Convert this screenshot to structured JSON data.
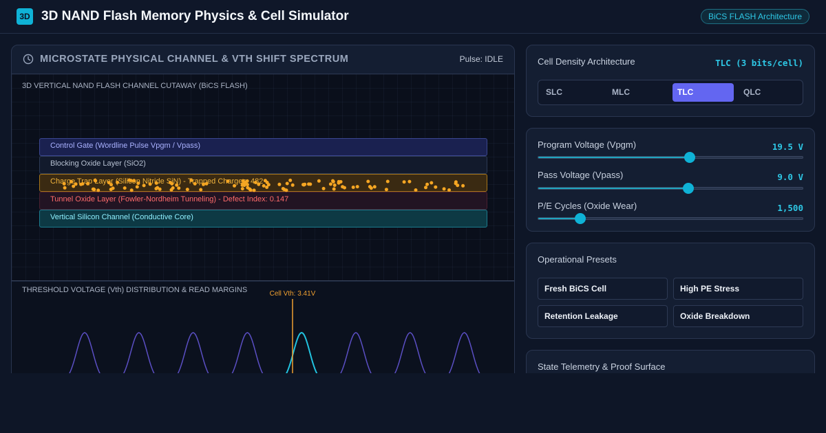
{
  "header": {
    "logo_text": "3D",
    "title": "3D NAND Flash Memory Physics & Cell Simulator",
    "badge": "BiCS FLASH Architecture"
  },
  "main_panel": {
    "title": "MICROSTATE PHYSICAL CHANNEL & VTH SHIFT SPECTRUM",
    "pulse_status": "Pulse: IDLE",
    "cutaway_label": "3D VERTICAL NAND FLASH CHANNEL CUTAWAY (BiCS FLASH)",
    "layers": {
      "control_gate": "Control Gate (Wordline Pulse Vpgm / Vpass)",
      "blocking_oxide": "Blocking Oxide Layer (SiO2)",
      "charge_trap": "Charge Trap Layer (Silicon Nitride SiN) - Trapped Charges: 482",
      "tunnel_oxide": "Tunnel Oxide Layer (Fowler-Nordheim Tunneling) - Defect Index: 0.147",
      "channel": "Vertical Silicon Channel (Conductive Core)"
    },
    "vth_label": "THRESHOLD VOLTAGE (Vth) DISTRIBUTION & READ MARGINS",
    "cell_vth_label": "Cell Vth: 3.41V",
    "vth_states": 8,
    "active_state_index": 4,
    "colors": {
      "state_curve": "#5b4fc4",
      "active_curve": "#22c3e0",
      "cell_marker": "#f0a030",
      "charge_dot": "#f5a623"
    }
  },
  "density": {
    "title": "Cell Density Architecture",
    "value": "TLC (3 bits/cell)",
    "options": [
      "SLC",
      "MLC",
      "TLC",
      "QLC"
    ],
    "selected": "TLC"
  },
  "sliders": [
    {
      "label": "Program Voltage (Vpgm)",
      "value": "19.5 V",
      "fraction": 0.573
    },
    {
      "label": "Pass Voltage (Vpass)",
      "value": "9.0 V",
      "fraction": 0.567
    },
    {
      "label": "P/E Cycles (Oxide Wear)",
      "value": "1,500",
      "fraction": 0.16
    }
  ],
  "presets": {
    "title": "Operational Presets",
    "buttons": [
      "Fresh BiCS Cell",
      "High PE Stress",
      "Retention Leakage",
      "Oxide Breakdown"
    ]
  },
  "telemetry": {
    "title": "State Telemetry & Proof Surface"
  }
}
